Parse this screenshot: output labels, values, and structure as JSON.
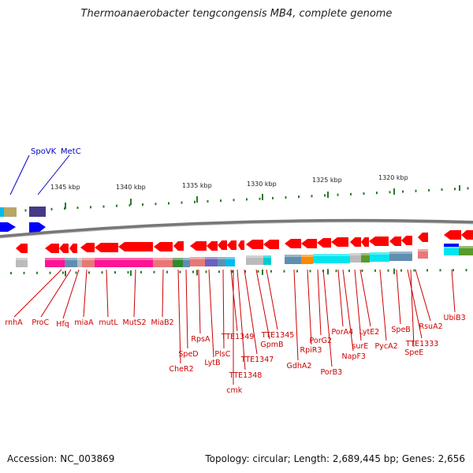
{
  "header": {
    "title": "Thermoanaerobacter tengcongensis MB4, complete genome"
  },
  "footer": {
    "accession": "Accession: NC_003869",
    "summary": "Topology: circular; Length: 2,689,445 bp; Genes: 2,656"
  },
  "scale": {
    "unit": "kbp",
    "ticks": [
      "1345 kbp",
      "1340 kbp",
      "1335 kbp",
      "1330 kbp",
      "1325 kbp",
      "1320 kbp"
    ]
  },
  "colors": {
    "forward_gene": "#ff0000",
    "other_strand_gene": "#0000ff",
    "backbone": "#777777",
    "tick": "#2a7a2a",
    "label_red": "#cc0000",
    "label_blue": "#0000cc"
  },
  "top_labels": [
    "SpoVK",
    "MetC"
  ],
  "bottom_labels": [
    "rnhA",
    "ProC",
    "Hfq",
    "miaA",
    "mutL",
    "MutS2",
    "MiaB2",
    "CheR2",
    "SpeD",
    "RpsA",
    "LytB",
    "PlsC",
    "TTE1349",
    "cmk",
    "TTE1348",
    "TTE1347",
    "GpmB",
    "TTE1345",
    "GdhA2",
    "RpiR3",
    "PorG2",
    "PorB3",
    "PorA4",
    "NapF3",
    "surE",
    "LytE2",
    "PycA2",
    "SpeB",
    "TTE1333",
    "SpeE",
    "RsuA2",
    "UbiB3"
  ]
}
